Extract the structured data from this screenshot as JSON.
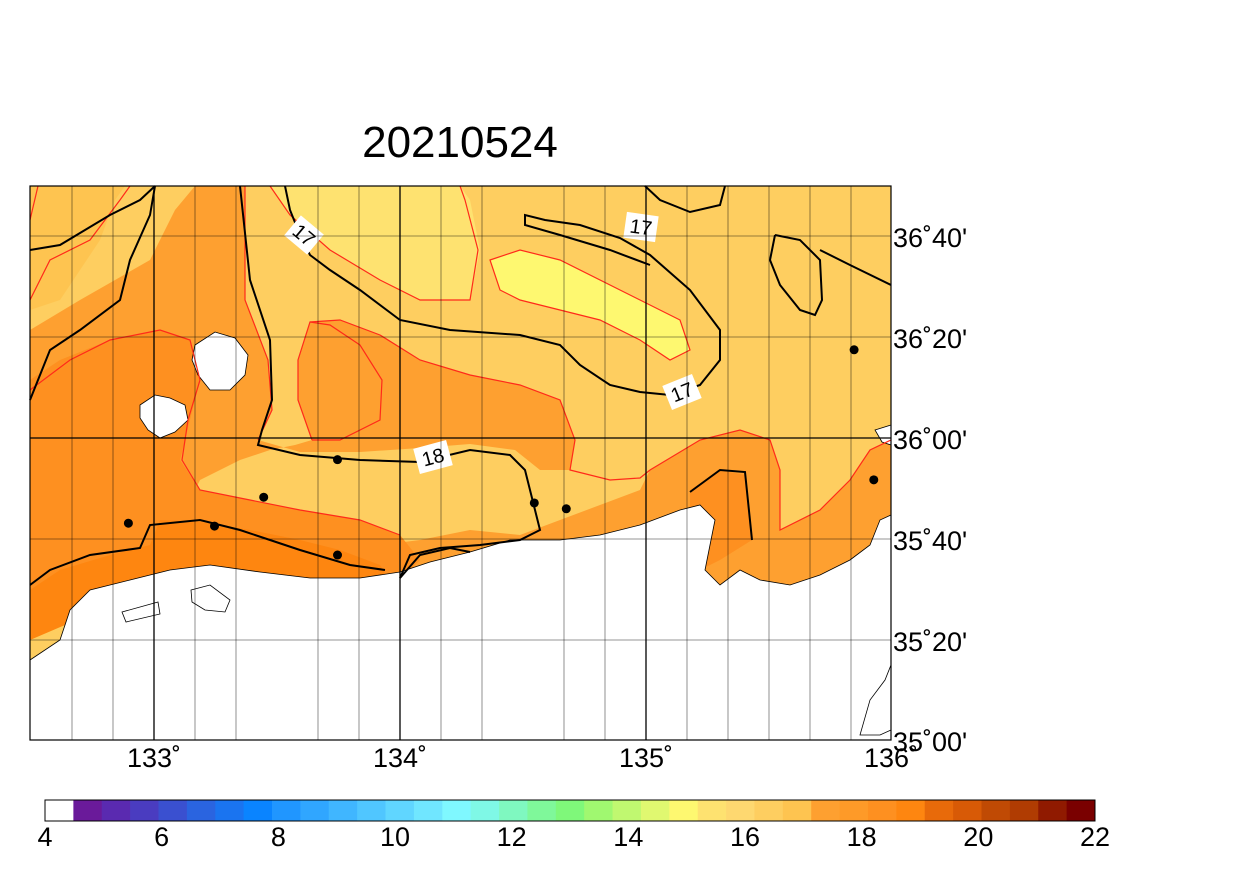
{
  "title": "20210524",
  "map": {
    "lon_range": [
      132.5,
      136.0
    ],
    "lat_range": [
      35.0,
      36.9167
    ],
    "lon_tick_labels": [
      "133˚",
      "134˚",
      "135˚",
      "136˚"
    ],
    "lat_tick_labels": [
      "36˚40'",
      "36˚20'",
      "36˚00'",
      "35˚40'",
      "35˚20'",
      "35˚00'"
    ],
    "contour_labels": [
      "17",
      "17",
      "17",
      "18"
    ],
    "land_color": "#ffffff",
    "coast_color": "#000000"
  },
  "colorbar": {
    "levels": [
      4,
      4.5,
      5,
      5.5,
      6,
      6.5,
      7,
      7.5,
      8,
      8.5,
      9,
      9.5,
      10,
      10.5,
      11,
      11.5,
      12,
      12.5,
      13,
      13.5,
      14,
      14.5,
      15,
      15.5,
      16,
      16.5,
      17,
      17.5,
      18,
      18.5,
      19,
      19.5,
      20,
      20.5,
      21,
      21.5,
      22
    ],
    "tick_labels": [
      "4",
      "6",
      "8",
      "10",
      "12",
      "14",
      "16",
      "18",
      "20",
      "22"
    ],
    "colors": [
      "#ffffff",
      "#6a1a9a",
      "#5a2ab0",
      "#4a3cc0",
      "#3a50d0",
      "#2a64e0",
      "#1a74f0",
      "#0a84ff",
      "#2096ff",
      "#30a6ff",
      "#40b6ff",
      "#50c6ff",
      "#60d6ff",
      "#70e6ff",
      "#7ff8ff",
      "#7ff8e6",
      "#7ff8c0",
      "#7ff89a",
      "#7ff87a",
      "#a0f870",
      "#c0f870",
      "#e0f870",
      "#fef870",
      "#fee270",
      "#fed870",
      "#fece60",
      "#fec450",
      "#fea030",
      "#fe9a28",
      "#fe9020",
      "#fe8610",
      "#e86a0a",
      "#d85a06",
      "#c04a04",
      "#b03c02",
      "#901a00",
      "#7a0000"
    ]
  },
  "stations": [
    {
      "lon": 132.9,
      "lat": 35.75
    },
    {
      "lon": 133.25,
      "lat": 35.74
    },
    {
      "lon": 133.45,
      "lat": 35.84
    },
    {
      "lon": 133.75,
      "lat": 35.97
    },
    {
      "lon": 133.75,
      "lat": 35.64
    },
    {
      "lon": 134.55,
      "lat": 35.82
    },
    {
      "lon": 134.68,
      "lat": 35.8
    },
    {
      "lon": 135.85,
      "lat": 36.35
    },
    {
      "lon": 135.93,
      "lat": 35.9
    }
  ]
}
